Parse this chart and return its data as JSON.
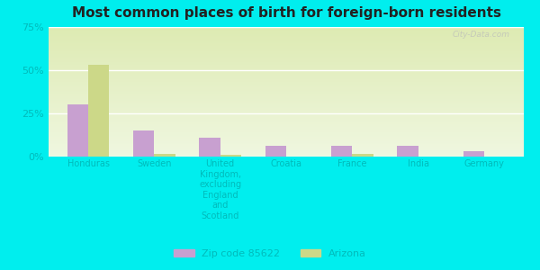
{
  "title": "Most common places of birth for foreign-born residents",
  "categories": [
    "Honduras",
    "Sweden",
    "United\nKingdom,\nexcluding\nEngland\nand\nScotland",
    "Croatia",
    "France",
    "India",
    "Germany"
  ],
  "zip_values": [
    30,
    15,
    11,
    6,
    6,
    6,
    3
  ],
  "az_values": [
    53,
    1.5,
    1.0,
    0,
    1.5,
    0,
    0
  ],
  "zip_color": "#c8a0d0",
  "az_color": "#ccd888",
  "background_color": "#00eeee",
  "plot_bg_top": "#dde8b0",
  "plot_bg_bottom": "#f0f8e0",
  "title_color": "#222222",
  "tick_color": "#00bbbb",
  "ylim": [
    0,
    75
  ],
  "yticks": [
    0,
    25,
    50,
    75
  ],
  "ytick_labels": [
    "0%",
    "25%",
    "50%",
    "75%"
  ],
  "legend_zip_label": "Zip code 85622",
  "legend_az_label": "Arizona",
  "bar_width": 0.32
}
